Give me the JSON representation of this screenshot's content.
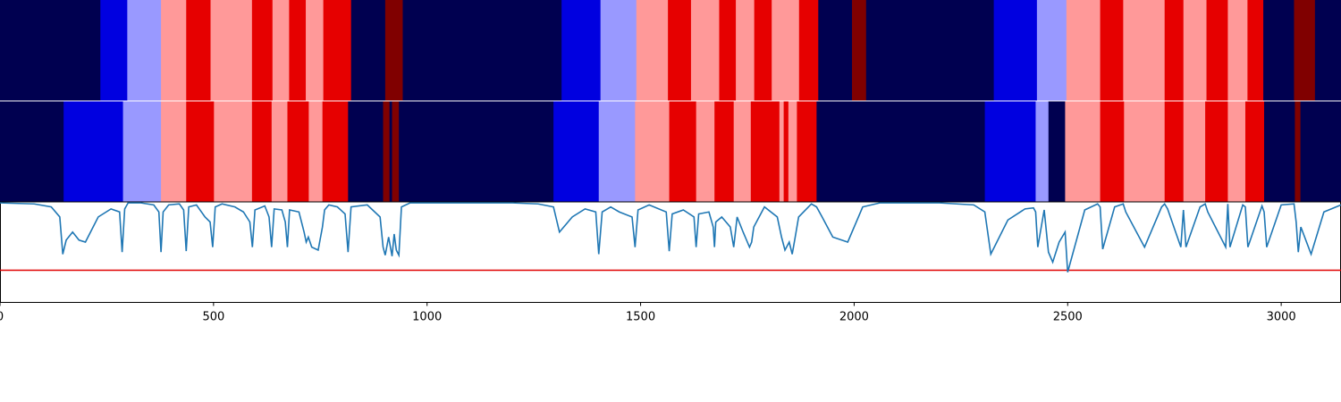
{
  "chart_data": {
    "type": "heatmap",
    "title": "",
    "xlabel": "",
    "ylabel": "",
    "xlim": [
      0,
      3140
    ],
    "xticks": [
      0,
      500,
      1000,
      1500,
      2000,
      2500,
      3000
    ],
    "xtick_labels": [
      "0",
      "500",
      "1000",
      "1500",
      "2000",
      "2500",
      "3000"
    ],
    "colors": {
      "dark_navy": "#000050",
      "blue": "#0000e0",
      "light_blue": "#9999ff",
      "pink": "#ff9999",
      "red": "#e60000",
      "dark_red": "#800000",
      "line": "#1f77b4",
      "threshold": "#e00000"
    },
    "rows": [
      {
        "segments": [
          [
            0,
            235,
            "dark_navy"
          ],
          [
            235,
            298,
            "blue"
          ],
          [
            298,
            377,
            "light_blue"
          ],
          [
            377,
            436,
            "pink"
          ],
          [
            436,
            493,
            "red"
          ],
          [
            493,
            590,
            "pink"
          ],
          [
            590,
            638,
            "red"
          ],
          [
            638,
            677,
            "pink"
          ],
          [
            677,
            716,
            "red"
          ],
          [
            716,
            757,
            "pink"
          ],
          [
            757,
            822,
            "red"
          ],
          [
            822,
            902,
            "dark_navy"
          ],
          [
            902,
            943,
            "dark_red"
          ],
          [
            943,
            1315,
            "dark_navy"
          ],
          [
            1315,
            1406,
            "blue"
          ],
          [
            1406,
            1490,
            "light_blue"
          ],
          [
            1490,
            1564,
            "pink"
          ],
          [
            1564,
            1618,
            "red"
          ],
          [
            1618,
            1684,
            "pink"
          ],
          [
            1684,
            1723,
            "red"
          ],
          [
            1723,
            1766,
            "pink"
          ],
          [
            1766,
            1807,
            "red"
          ],
          [
            1807,
            1871,
            "pink"
          ],
          [
            1871,
            1916,
            "red"
          ],
          [
            1916,
            1995,
            "dark_navy"
          ],
          [
            1995,
            2028,
            "dark_red"
          ],
          [
            2028,
            2327,
            "dark_navy"
          ],
          [
            2327,
            2428,
            "blue"
          ],
          [
            2428,
            2497,
            "light_blue"
          ],
          [
            2497,
            2576,
            "pink"
          ],
          [
            2576,
            2630,
            "red"
          ],
          [
            2630,
            2727,
            "pink"
          ],
          [
            2727,
            2771,
            "red"
          ],
          [
            2771,
            2825,
            "pink"
          ],
          [
            2825,
            2875,
            "red"
          ],
          [
            2875,
            2921,
            "pink"
          ],
          [
            2921,
            2958,
            "red"
          ],
          [
            2958,
            3030,
            "dark_navy"
          ],
          [
            3030,
            3079,
            "dark_red"
          ],
          [
            3079,
            3140,
            "dark_navy"
          ]
        ]
      },
      {
        "segments": [
          [
            0,
            149,
            "dark_navy"
          ],
          [
            149,
            288,
            "blue"
          ],
          [
            288,
            377,
            "light_blue"
          ],
          [
            377,
            436,
            "pink"
          ],
          [
            436,
            501,
            "red"
          ],
          [
            501,
            590,
            "pink"
          ],
          [
            590,
            636,
            "red"
          ],
          [
            636,
            673,
            "pink"
          ],
          [
            673,
            723,
            "red"
          ],
          [
            723,
            755,
            "pink"
          ],
          [
            755,
            815,
            "red"
          ],
          [
            815,
            897,
            "dark_navy"
          ],
          [
            897,
            912,
            "dark_red"
          ],
          [
            912,
            918,
            "dark_navy"
          ],
          [
            918,
            934,
            "dark_red"
          ],
          [
            934,
            1296,
            "dark_navy"
          ],
          [
            1296,
            1402,
            "blue"
          ],
          [
            1402,
            1487,
            "light_blue"
          ],
          [
            1487,
            1567,
            "pink"
          ],
          [
            1567,
            1630,
            "red"
          ],
          [
            1630,
            1673,
            "pink"
          ],
          [
            1673,
            1718,
            "red"
          ],
          [
            1718,
            1758,
            "pink"
          ],
          [
            1758,
            1825,
            "red"
          ],
          [
            1825,
            1835,
            "pink"
          ],
          [
            1835,
            1846,
            "red"
          ],
          [
            1846,
            1866,
            "pink"
          ],
          [
            1866,
            1912,
            "red"
          ],
          [
            1912,
            2306,
            "dark_navy"
          ],
          [
            2306,
            2425,
            "blue"
          ],
          [
            2425,
            2455,
            "light_blue"
          ],
          [
            2455,
            2494,
            "dark_navy"
          ],
          [
            2494,
            2576,
            "pink"
          ],
          [
            2576,
            2632,
            "red"
          ],
          [
            2632,
            2727,
            "pink"
          ],
          [
            2727,
            2771,
            "red"
          ],
          [
            2771,
            2822,
            "pink"
          ],
          [
            2822,
            2875,
            "red"
          ],
          [
            2875,
            2916,
            "pink"
          ],
          [
            2916,
            2960,
            "red"
          ],
          [
            2960,
            3032,
            "dark_navy"
          ],
          [
            3032,
            3045,
            "dark_red"
          ],
          [
            3045,
            3140,
            "dark_navy"
          ]
        ]
      }
    ],
    "line_series": {
      "ylim": [
        0,
        1
      ],
      "threshold": 0.32,
      "x": [
        0,
        80,
        120,
        140,
        147,
        155,
        170,
        185,
        200,
        230,
        260,
        280,
        286,
        292,
        300,
        330,
        360,
        372,
        377,
        382,
        395,
        420,
        430,
        436,
        442,
        460,
        480,
        492,
        498,
        504,
        520,
        550,
        570,
        585,
        591,
        597,
        620,
        630,
        636,
        642,
        660,
        668,
        673,
        678,
        700,
        712,
        717,
        722,
        730,
        745,
        755,
        760,
        770,
        790,
        808,
        815,
        822,
        860,
        890,
        897,
        902,
        910,
        918,
        923,
        928,
        934,
        940,
        960,
        1000,
        1100,
        1200,
        1260,
        1296,
        1310,
        1340,
        1370,
        1395,
        1402,
        1410,
        1430,
        1450,
        1480,
        1487,
        1494,
        1520,
        1560,
        1567,
        1574,
        1600,
        1625,
        1630,
        1636,
        1660,
        1670,
        1673,
        1676,
        1690,
        1710,
        1718,
        1726,
        1740,
        1755,
        1760,
        1765,
        1790,
        1820,
        1830,
        1838,
        1848,
        1855,
        1862,
        1870,
        1900,
        1912,
        1925,
        1950,
        1985,
        2000,
        2020,
        2060,
        2100,
        2200,
        2280,
        2306,
        2320,
        2360,
        2400,
        2420,
        2425,
        2430,
        2445,
        2455,
        2465,
        2480,
        2494,
        2500,
        2540,
        2570,
        2576,
        2582,
        2610,
        2630,
        2636,
        2680,
        2720,
        2727,
        2734,
        2765,
        2771,
        2777,
        2810,
        2822,
        2828,
        2870,
        2875,
        2880,
        2910,
        2916,
        2922,
        2955,
        2960,
        2966,
        3000,
        3030,
        3035,
        3040,
        3046,
        3070,
        3100,
        3140
      ],
      "y": [
        0.99,
        0.98,
        0.95,
        0.85,
        0.48,
        0.62,
        0.7,
        0.62,
        0.6,
        0.85,
        0.93,
        0.9,
        0.5,
        0.93,
        0.99,
        0.99,
        0.97,
        0.9,
        0.5,
        0.9,
        0.97,
        0.98,
        0.92,
        0.51,
        0.95,
        0.97,
        0.85,
        0.8,
        0.55,
        0.95,
        0.98,
        0.95,
        0.9,
        0.8,
        0.55,
        0.92,
        0.96,
        0.85,
        0.55,
        0.93,
        0.92,
        0.8,
        0.55,
        0.92,
        0.9,
        0.7,
        0.6,
        0.65,
        0.55,
        0.52,
        0.75,
        0.92,
        0.97,
        0.95,
        0.88,
        0.5,
        0.95,
        0.97,
        0.85,
        0.55,
        0.47,
        0.65,
        0.46,
        0.68,
        0.52,
        0.47,
        0.95,
        0.99,
        0.99,
        0.99,
        0.99,
        0.98,
        0.95,
        0.7,
        0.85,
        0.93,
        0.9,
        0.48,
        0.9,
        0.95,
        0.9,
        0.85,
        0.55,
        0.92,
        0.97,
        0.9,
        0.51,
        0.88,
        0.92,
        0.85,
        0.55,
        0.88,
        0.9,
        0.75,
        0.55,
        0.8,
        0.85,
        0.75,
        0.55,
        0.85,
        0.7,
        0.55,
        0.6,
        0.75,
        0.95,
        0.85,
        0.65,
        0.52,
        0.6,
        0.48,
        0.65,
        0.85,
        0.98,
        0.95,
        0.85,
        0.65,
        0.6,
        0.75,
        0.95,
        0.99,
        0.99,
        0.99,
        0.97,
        0.9,
        0.48,
        0.82,
        0.93,
        0.94,
        0.9,
        0.55,
        0.92,
        0.5,
        0.4,
        0.6,
        0.7,
        0.3,
        0.92,
        0.98,
        0.95,
        0.53,
        0.95,
        0.98,
        0.9,
        0.55,
        0.95,
        0.98,
        0.93,
        0.55,
        0.92,
        0.55,
        0.95,
        0.98,
        0.9,
        0.55,
        0.98,
        0.55,
        0.97,
        0.95,
        0.55,
        0.96,
        0.9,
        0.55,
        0.97,
        0.98,
        0.8,
        0.5,
        0.75,
        0.48,
        0.9,
        0.97,
        0.99
      ]
    }
  }
}
